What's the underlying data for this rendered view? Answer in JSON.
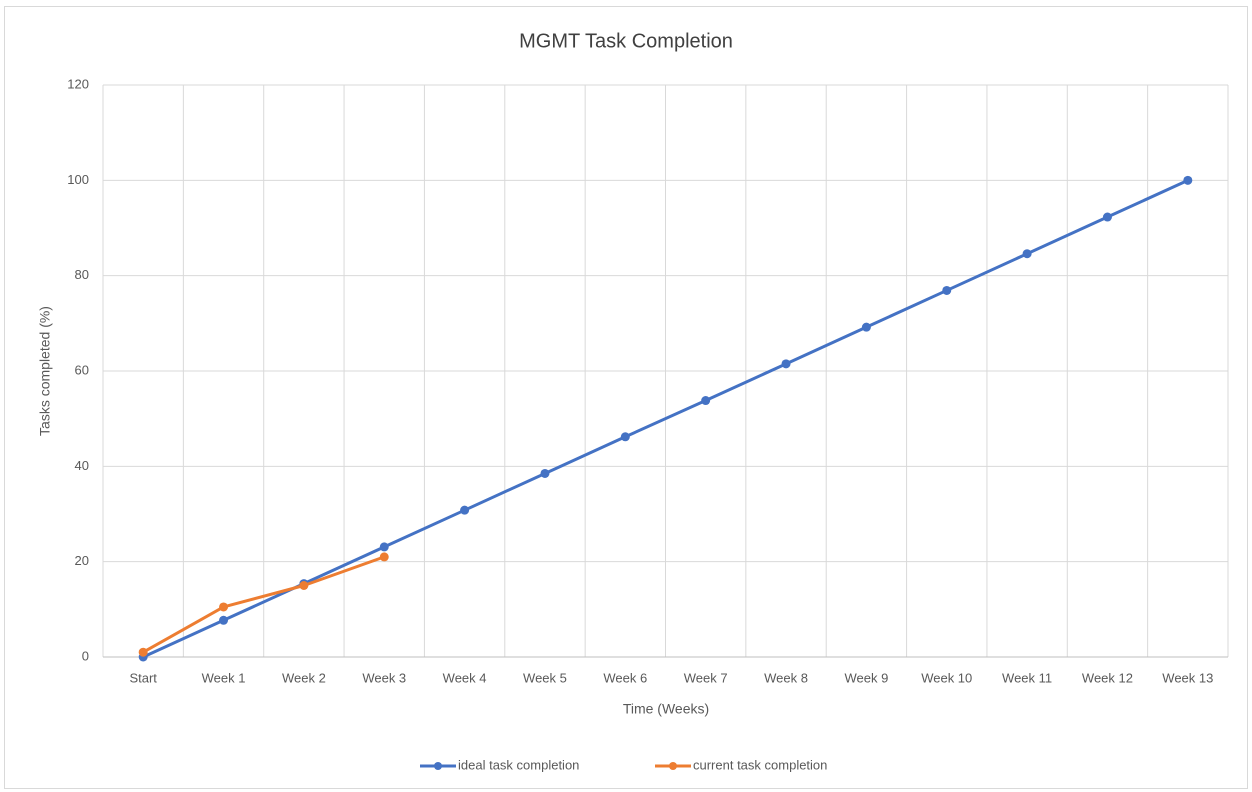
{
  "chart_data": {
    "type": "line",
    "title": "MGMT Task Completion",
    "x_label": "Time (Weeks)",
    "y_label": "Tasks completed (%)",
    "categories": [
      "Start",
      "Week 1",
      "Week 2",
      "Week 3",
      "Week 4",
      "Week 5",
      "Week 6",
      "Week 7",
      "Week 8",
      "Week 9",
      "Week 10",
      "Week 11",
      "Week 12",
      "Week 13"
    ],
    "series": [
      {
        "name": "ideal task completion",
        "color": "#4472c4",
        "values": [
          0,
          7.7,
          15.4,
          23.1,
          30.8,
          38.5,
          46.2,
          53.8,
          61.5,
          69.2,
          76.9,
          84.6,
          92.3,
          100
        ]
      },
      {
        "name": "current task completion",
        "color": "#ed7d31",
        "values": [
          1,
          10.5,
          15,
          21,
          null,
          null,
          null,
          null,
          null,
          null,
          null,
          null,
          null,
          null
        ]
      }
    ],
    "ylim": [
      0,
      120
    ],
    "yticks": [
      0,
      20,
      40,
      60,
      80,
      100,
      120
    ],
    "grid": true,
    "legend": "bottom"
  }
}
